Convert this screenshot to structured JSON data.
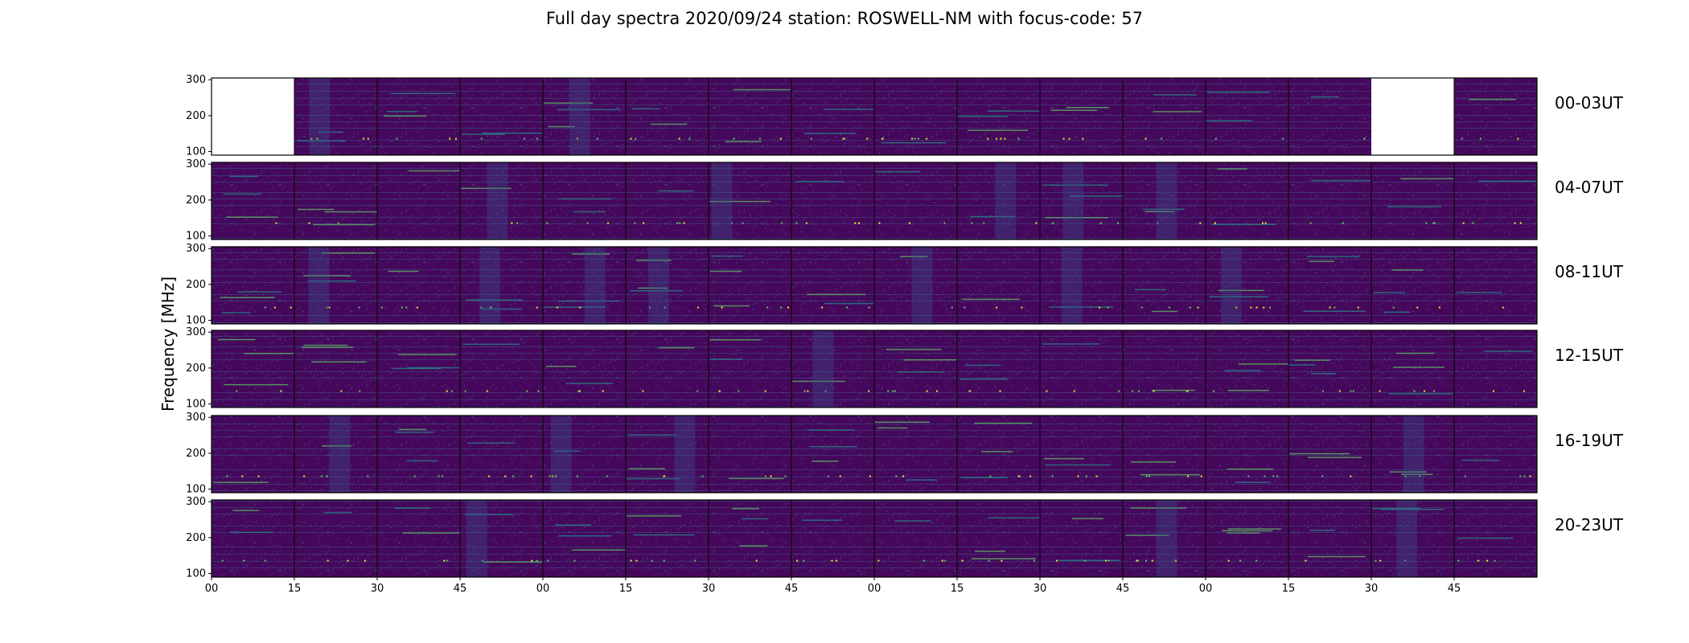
{
  "chart_data": {
    "type": "heatmap",
    "title": "Full day spectra 2020/09/24 station: ROSWELL-NM with focus-code: 57",
    "ylabel": "Frequency [MHz]",
    "xlabel": "",
    "y_ticks": [
      "100",
      "200",
      "300"
    ],
    "ylim": [
      90,
      305
    ],
    "x_ticks": [
      "00",
      "15",
      "30",
      "45",
      "00",
      "15",
      "30",
      "45",
      "00",
      "15",
      "30",
      "45",
      "00",
      "15",
      "30",
      "45"
    ],
    "rows": [
      {
        "label": "00-03UT",
        "missing_panels": [
          0,
          14
        ]
      },
      {
        "label": "04-07UT",
        "missing_panels": []
      },
      {
        "label": "08-11UT",
        "missing_panels": []
      },
      {
        "label": "12-15UT",
        "missing_panels": []
      },
      {
        "label": "16-19UT",
        "missing_panels": []
      },
      {
        "label": "20-23UT",
        "missing_panels": []
      }
    ],
    "panels_per_row": 16,
    "panel_minutes": 15,
    "colormap": [
      "#440154",
      "#3b528b",
      "#21918c",
      "#5ec962",
      "#fde725"
    ],
    "background_color": "#46085c"
  }
}
